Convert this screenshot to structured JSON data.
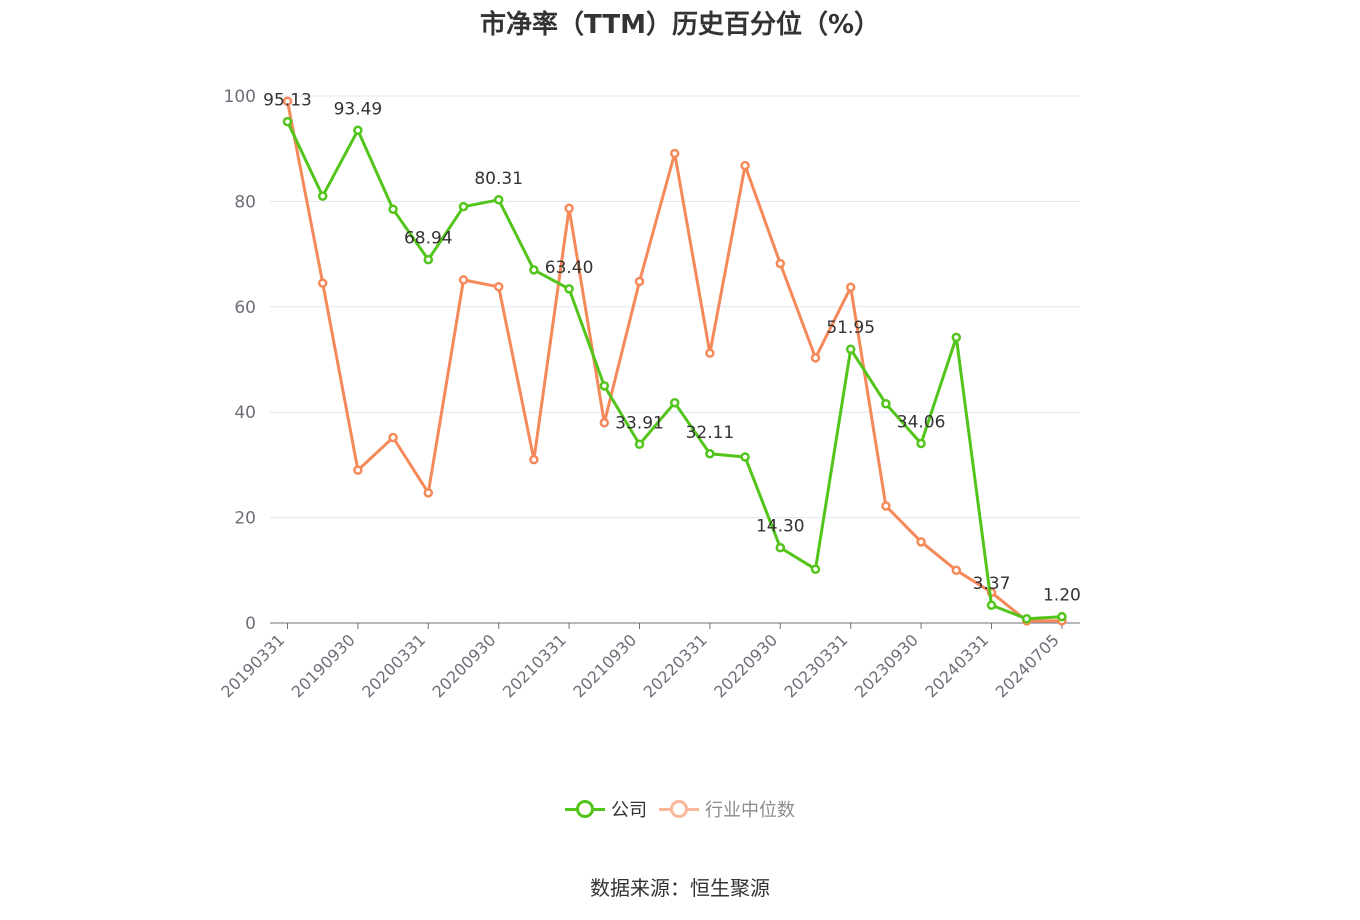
{
  "chart_data": {
    "type": "line",
    "title": "市净率（TTM）历史百分位（%）",
    "ylim": [
      0,
      100
    ],
    "yticks": [
      0,
      20,
      40,
      60,
      80,
      100
    ],
    "x_tick_labels": [
      "20190331",
      "20190930",
      "20200331",
      "20200930",
      "20210331",
      "20210930",
      "20220331",
      "20220930",
      "20230331",
      "20230930",
      "20240331",
      "20240705"
    ],
    "x_points": 23,
    "series": [
      {
        "name": "公司",
        "color": "#52c41a",
        "values": [
          95.13,
          81.0,
          93.49,
          78.5,
          68.94,
          79.0,
          80.31,
          67.0,
          63.4,
          45.0,
          33.91,
          41.8,
          32.11,
          31.5,
          14.3,
          10.2,
          51.95,
          41.6,
          34.06,
          54.2,
          3.37,
          0.8,
          1.2
        ],
        "labels": {
          "0": "95.13",
          "2": "93.49",
          "4": "68.94",
          "6": "80.31",
          "8": "63.40",
          "10": "33.91",
          "12": "32.11",
          "14": "14.30",
          "16": "51.95",
          "18": "34.06",
          "20": "3.37",
          "22": "1.20"
        }
      },
      {
        "name": "行业中位数",
        "color": "#f5895a",
        "values": [
          99.0,
          64.5,
          29.0,
          35.2,
          24.7,
          65.1,
          63.8,
          31.0,
          78.7,
          38.0,
          64.8,
          89.1,
          51.2,
          86.8,
          68.2,
          50.3,
          63.7,
          22.2,
          15.4,
          10.0,
          5.8,
          0.4,
          0.4
        ]
      }
    ]
  },
  "source": "数据来源：恒生聚源"
}
